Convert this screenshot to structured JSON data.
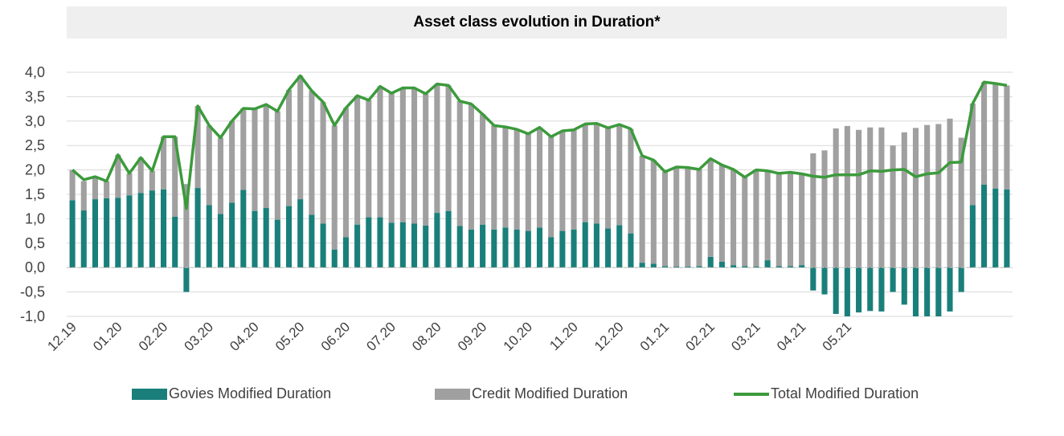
{
  "chart_data": {
    "type": "bar",
    "title": "Asset class evolution in Duration*",
    "xlabel": "",
    "ylabel": "",
    "ylim": [
      -1.0,
      4.0
    ],
    "yticks": [
      "4,0",
      "3,5",
      "3,0",
      "2,5",
      "2,0",
      "1,5",
      "1,0",
      "0,5",
      "0,0",
      "-0,5",
      "-1,0"
    ],
    "x_tick_labels": [
      "12.19",
      "01.20",
      "02.20",
      "03.20",
      "04.20",
      "05.20",
      "06.20",
      "07.20",
      "08.20",
      "09.20",
      "10.20",
      "11.20",
      "12.20",
      "01.21",
      "02.21",
      "03.21",
      "04.21",
      "05.21"
    ],
    "x_tick_positions": [
      0,
      4,
      8,
      12,
      16,
      20,
      24,
      28,
      32,
      36,
      40,
      44,
      48,
      52,
      56,
      60,
      64,
      68
    ],
    "grid": "horizontal",
    "legend_position": "bottom",
    "series": [
      {
        "name": "Govies Modified Duration",
        "kind": "bar",
        "color": "#1a7f7a",
        "values": [
          1.38,
          1.17,
          1.4,
          1.42,
          1.43,
          1.48,
          1.53,
          1.58,
          1.6,
          1.04,
          -0.5,
          1.63,
          1.28,
          1.1,
          1.33,
          1.59,
          1.16,
          1.22,
          0.98,
          1.26,
          1.4,
          1.08,
          0.9,
          0.37,
          0.62,
          0.88,
          1.03,
          1.03,
          0.92,
          0.93,
          0.9,
          0.86,
          1.12,
          1.16,
          0.85,
          0.78,
          0.88,
          0.78,
          0.82,
          0.78,
          0.75,
          0.82,
          0.62,
          0.75,
          0.78,
          0.93,
          0.9,
          0.8,
          0.87,
          0.7,
          0.1,
          0.08,
          0.03,
          0.02,
          0.02,
          0.03,
          0.22,
          0.12,
          0.05,
          0.03,
          0.02,
          0.15,
          0.03,
          0.03,
          0.05,
          -0.47,
          -0.55,
          -0.95,
          -1.0,
          -0.92,
          -0.89,
          -0.9,
          -0.5,
          -0.76,
          -1.0,
          -1.0,
          -1.0,
          -0.9,
          -0.5,
          1.28,
          1.7,
          1.62,
          1.6
        ]
      },
      {
        "name": "Credit Modified Duration",
        "kind": "bar",
        "color": "#a0a0a0",
        "values": [
          0.62,
          0.6,
          0.46,
          0.35,
          0.88,
          0.45,
          0.72,
          0.4,
          1.08,
          1.64,
          1.71,
          1.68,
          1.63,
          1.56,
          1.67,
          1.67,
          2.09,
          2.12,
          2.22,
          2.38,
          2.53,
          2.54,
          2.49,
          2.54,
          2.65,
          2.64,
          2.4,
          2.68,
          2.65,
          2.75,
          2.78,
          2.7,
          2.64,
          2.57,
          2.56,
          2.57,
          2.26,
          2.13,
          2.06,
          2.05,
          1.99,
          2.05,
          2.06,
          2.05,
          2.04,
          2.01,
          2.05,
          2.06,
          2.06,
          2.14,
          2.19,
          2.12,
          1.93,
          2.04,
          2.03,
          1.98,
          2.01,
          1.98,
          1.96,
          1.82,
          1.98,
          1.83,
          1.9,
          1.92,
          1.87,
          2.34,
          2.4,
          2.85,
          2.9,
          2.82,
          2.87,
          2.87,
          2.5,
          2.77,
          2.86,
          2.92,
          2.94,
          3.05,
          2.66,
          2.08,
          2.1,
          2.15,
          2.13
        ]
      },
      {
        "name": "Total Modified Duration",
        "kind": "line",
        "color": "#3c9a3c",
        "values": [
          2.0,
          1.8,
          1.86,
          1.77,
          2.31,
          1.93,
          2.25,
          1.98,
          2.68,
          2.68,
          1.21,
          3.31,
          2.91,
          2.66,
          3.0,
          3.26,
          3.25,
          3.34,
          3.2,
          3.64,
          3.93,
          3.62,
          3.39,
          2.91,
          3.27,
          3.52,
          3.43,
          3.71,
          3.57,
          3.68,
          3.68,
          3.56,
          3.76,
          3.73,
          3.41,
          3.35,
          3.14,
          2.91,
          2.88,
          2.83,
          2.74,
          2.87,
          2.68,
          2.8,
          2.82,
          2.94,
          2.95,
          2.86,
          2.93,
          2.84,
          2.29,
          2.2,
          1.96,
          2.06,
          2.05,
          2.01,
          2.23,
          2.1,
          2.01,
          1.85,
          2.0,
          1.98,
          1.93,
          1.95,
          1.92,
          1.87,
          1.85,
          1.9,
          1.9,
          1.9,
          1.98,
          1.97,
          2.0,
          2.01,
          1.86,
          1.92,
          1.94,
          2.15,
          2.16,
          3.36,
          3.8,
          3.77,
          3.73
        ]
      }
    ]
  },
  "legend": {
    "items": [
      {
        "label": "Govies Modified Duration",
        "color": "#1a7f7a",
        "kind": "bar"
      },
      {
        "label": "Credit Modified Duration",
        "color": "#a0a0a0",
        "kind": "bar"
      },
      {
        "label": "Total Modified Duration",
        "color": "#3c9a3c",
        "kind": "line"
      }
    ]
  }
}
